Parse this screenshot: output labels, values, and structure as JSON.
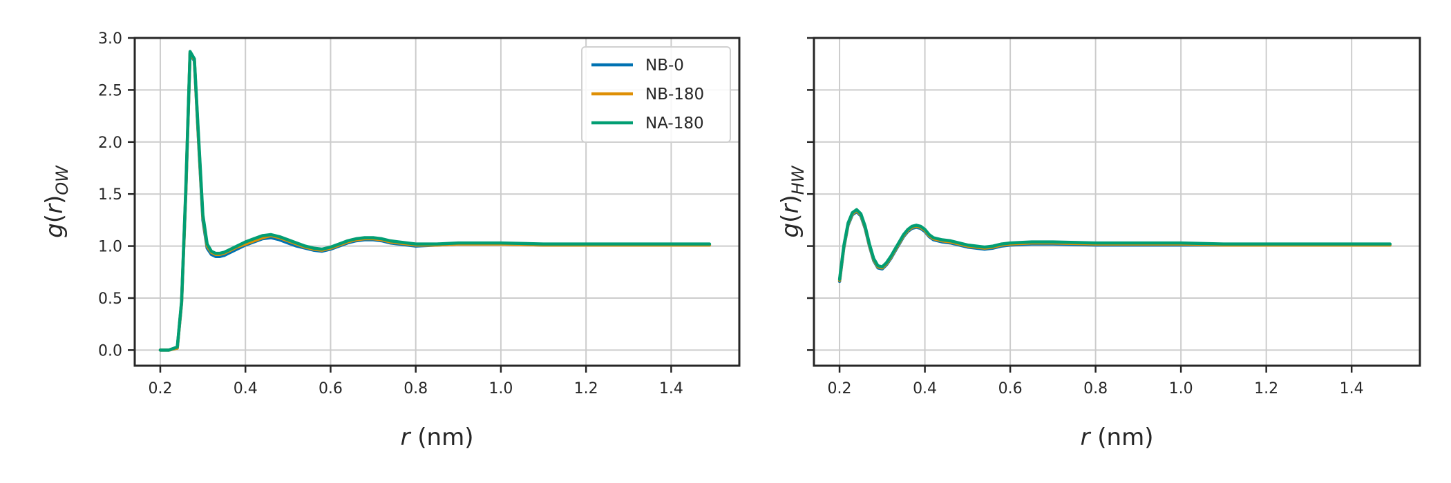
{
  "chart_data": [
    {
      "type": "line",
      "title": "",
      "xlabel": "r (nm)",
      "ylabel": "g(r)OW",
      "xlabel_parts": {
        "var": "r",
        "unit": " (nm)"
      },
      "ylabel_parts": {
        "base": "g(",
        "var": "r",
        "close": ")",
        "sub": "OW"
      },
      "xlim": [
        0.14,
        1.56
      ],
      "ylim": [
        -0.15,
        3.0
      ],
      "xticks": [
        "0.2",
        "0.4",
        "0.6",
        "0.8",
        "1.0",
        "1.2",
        "1.4"
      ],
      "yticks": [
        "0.0",
        "0.5",
        "1.0",
        "1.5",
        "2.0",
        "2.5",
        "3.0"
      ],
      "grid": true,
      "legend": "top-right",
      "series": [
        {
          "name": "NB-0",
          "color": "#0072b2",
          "x": [
            0.2,
            0.22,
            0.24,
            0.25,
            0.26,
            0.27,
            0.28,
            0.29,
            0.3,
            0.31,
            0.32,
            0.33,
            0.34,
            0.35,
            0.36,
            0.38,
            0.4,
            0.42,
            0.44,
            0.46,
            0.48,
            0.5,
            0.52,
            0.54,
            0.56,
            0.58,
            0.6,
            0.62,
            0.64,
            0.66,
            0.68,
            0.7,
            0.72,
            0.74,
            0.76,
            0.78,
            0.8,
            0.85,
            0.9,
            1.0,
            1.1,
            1.2,
            1.3,
            1.4,
            1.49
          ],
          "y": [
            0.0,
            0.0,
            0.02,
            0.45,
            1.5,
            2.85,
            2.78,
            2.0,
            1.25,
            0.98,
            0.92,
            0.9,
            0.9,
            0.91,
            0.93,
            0.97,
            1.01,
            1.04,
            1.07,
            1.08,
            1.06,
            1.03,
            1.0,
            0.98,
            0.96,
            0.95,
            0.97,
            1.0,
            1.03,
            1.05,
            1.06,
            1.06,
            1.05,
            1.03,
            1.02,
            1.01,
            1.0,
            1.01,
            1.02,
            1.02,
            1.01,
            1.01,
            1.01,
            1.01,
            1.01
          ]
        },
        {
          "name": "NB-180",
          "color": "#de8f05",
          "x": [
            0.2,
            0.22,
            0.24,
            0.25,
            0.26,
            0.27,
            0.28,
            0.29,
            0.3,
            0.31,
            0.32,
            0.33,
            0.34,
            0.35,
            0.36,
            0.38,
            0.4,
            0.42,
            0.44,
            0.46,
            0.48,
            0.5,
            0.52,
            0.54,
            0.56,
            0.58,
            0.6,
            0.62,
            0.64,
            0.66,
            0.68,
            0.7,
            0.72,
            0.74,
            0.76,
            0.78,
            0.8,
            0.85,
            0.9,
            1.0,
            1.1,
            1.2,
            1.3,
            1.4,
            1.49
          ],
          "y": [
            0.0,
            0.0,
            0.02,
            0.46,
            1.52,
            2.86,
            2.79,
            2.02,
            1.28,
            1.0,
            0.94,
            0.92,
            0.92,
            0.93,
            0.95,
            0.99,
            1.02,
            1.05,
            1.08,
            1.1,
            1.08,
            1.05,
            1.02,
            0.99,
            0.97,
            0.96,
            0.98,
            1.01,
            1.04,
            1.06,
            1.07,
            1.07,
            1.06,
            1.04,
            1.03,
            1.02,
            1.01,
            1.01,
            1.02,
            1.02,
            1.01,
            1.01,
            1.01,
            1.01,
            1.01
          ]
        },
        {
          "name": "NA-180",
          "color": "#029e73",
          "x": [
            0.2,
            0.22,
            0.24,
            0.25,
            0.26,
            0.27,
            0.28,
            0.29,
            0.3,
            0.31,
            0.32,
            0.33,
            0.34,
            0.35,
            0.36,
            0.38,
            0.4,
            0.42,
            0.44,
            0.46,
            0.48,
            0.5,
            0.52,
            0.54,
            0.56,
            0.58,
            0.6,
            0.62,
            0.64,
            0.66,
            0.68,
            0.7,
            0.72,
            0.74,
            0.76,
            0.78,
            0.8,
            0.85,
            0.9,
            1.0,
            1.1,
            1.2,
            1.3,
            1.4,
            1.49
          ],
          "y": [
            0.0,
            0.0,
            0.03,
            0.47,
            1.55,
            2.87,
            2.8,
            2.05,
            1.3,
            1.02,
            0.95,
            0.93,
            0.93,
            0.94,
            0.96,
            1.0,
            1.04,
            1.07,
            1.1,
            1.11,
            1.09,
            1.06,
            1.03,
            1.0,
            0.98,
            0.97,
            0.99,
            1.02,
            1.05,
            1.07,
            1.08,
            1.08,
            1.07,
            1.05,
            1.04,
            1.03,
            1.02,
            1.02,
            1.03,
            1.03,
            1.02,
            1.02,
            1.02,
            1.02,
            1.02
          ]
        }
      ]
    },
    {
      "type": "line",
      "title": "",
      "xlabel": "r (nm)",
      "ylabel": "g(r)HW",
      "xlabel_parts": {
        "var": "r",
        "unit": " (nm)"
      },
      "ylabel_parts": {
        "base": "g(",
        "var": "r",
        "close": ")",
        "sub": "HW"
      },
      "xlim": [
        0.14,
        1.56
      ],
      "ylim": [
        -0.15,
        3.0
      ],
      "xticks": [
        "0.2",
        "0.4",
        "0.6",
        "0.8",
        "1.0",
        "1.2",
        "1.4"
      ],
      "yticks": [],
      "grid": true,
      "series": [
        {
          "name": "NB-0",
          "color": "#0072b2",
          "x": [
            0.2,
            0.21,
            0.22,
            0.23,
            0.24,
            0.25,
            0.26,
            0.27,
            0.28,
            0.29,
            0.3,
            0.31,
            0.32,
            0.33,
            0.34,
            0.35,
            0.36,
            0.37,
            0.38,
            0.39,
            0.4,
            0.41,
            0.42,
            0.44,
            0.46,
            0.48,
            0.5,
            0.52,
            0.54,
            0.56,
            0.58,
            0.6,
            0.65,
            0.7,
            0.8,
            0.9,
            1.0,
            1.1,
            1.2,
            1.3,
            1.4,
            1.49
          ],
          "y": [
            0.66,
            0.98,
            1.2,
            1.3,
            1.33,
            1.29,
            1.17,
            1.0,
            0.86,
            0.79,
            0.78,
            0.82,
            0.88,
            0.95,
            1.02,
            1.09,
            1.14,
            1.17,
            1.18,
            1.17,
            1.14,
            1.09,
            1.06,
            1.04,
            1.03,
            1.01,
            0.99,
            0.98,
            0.97,
            0.98,
            1.0,
            1.01,
            1.02,
            1.02,
            1.01,
            1.01,
            1.01,
            1.01,
            1.01,
            1.01,
            1.01,
            1.01
          ]
        },
        {
          "name": "NB-180",
          "color": "#de8f05",
          "x": [
            0.2,
            0.21,
            0.22,
            0.23,
            0.24,
            0.25,
            0.26,
            0.27,
            0.28,
            0.29,
            0.3,
            0.31,
            0.32,
            0.33,
            0.34,
            0.35,
            0.36,
            0.37,
            0.38,
            0.39,
            0.4,
            0.41,
            0.42,
            0.44,
            0.46,
            0.48,
            0.5,
            0.52,
            0.54,
            0.56,
            0.58,
            0.6,
            0.65,
            0.7,
            0.8,
            0.9,
            1.0,
            1.1,
            1.2,
            1.3,
            1.4,
            1.49
          ],
          "y": [
            0.67,
            0.99,
            1.21,
            1.31,
            1.34,
            1.3,
            1.18,
            1.01,
            0.87,
            0.8,
            0.79,
            0.83,
            0.89,
            0.96,
            1.03,
            1.1,
            1.15,
            1.18,
            1.19,
            1.18,
            1.15,
            1.1,
            1.07,
            1.05,
            1.04,
            1.02,
            1.0,
            0.99,
            0.98,
            0.99,
            1.01,
            1.02,
            1.03,
            1.03,
            1.02,
            1.02,
            1.02,
            1.01,
            1.01,
            1.01,
            1.01,
            1.01
          ]
        },
        {
          "name": "NA-180",
          "color": "#029e73",
          "x": [
            0.2,
            0.21,
            0.22,
            0.23,
            0.24,
            0.25,
            0.26,
            0.27,
            0.28,
            0.29,
            0.3,
            0.31,
            0.32,
            0.33,
            0.34,
            0.35,
            0.36,
            0.37,
            0.38,
            0.39,
            0.4,
            0.41,
            0.42,
            0.44,
            0.46,
            0.48,
            0.5,
            0.52,
            0.54,
            0.56,
            0.58,
            0.6,
            0.65,
            0.7,
            0.8,
            0.9,
            1.0,
            1.1,
            1.2,
            1.3,
            1.4,
            1.49
          ],
          "y": [
            0.68,
            1.0,
            1.22,
            1.32,
            1.35,
            1.31,
            1.19,
            1.02,
            0.88,
            0.81,
            0.8,
            0.84,
            0.9,
            0.97,
            1.04,
            1.11,
            1.16,
            1.19,
            1.2,
            1.19,
            1.16,
            1.11,
            1.08,
            1.06,
            1.05,
            1.03,
            1.01,
            1.0,
            0.99,
            1.0,
            1.02,
            1.03,
            1.04,
            1.04,
            1.03,
            1.03,
            1.03,
            1.02,
            1.02,
            1.02,
            1.02,
            1.02
          ]
        }
      ]
    }
  ]
}
